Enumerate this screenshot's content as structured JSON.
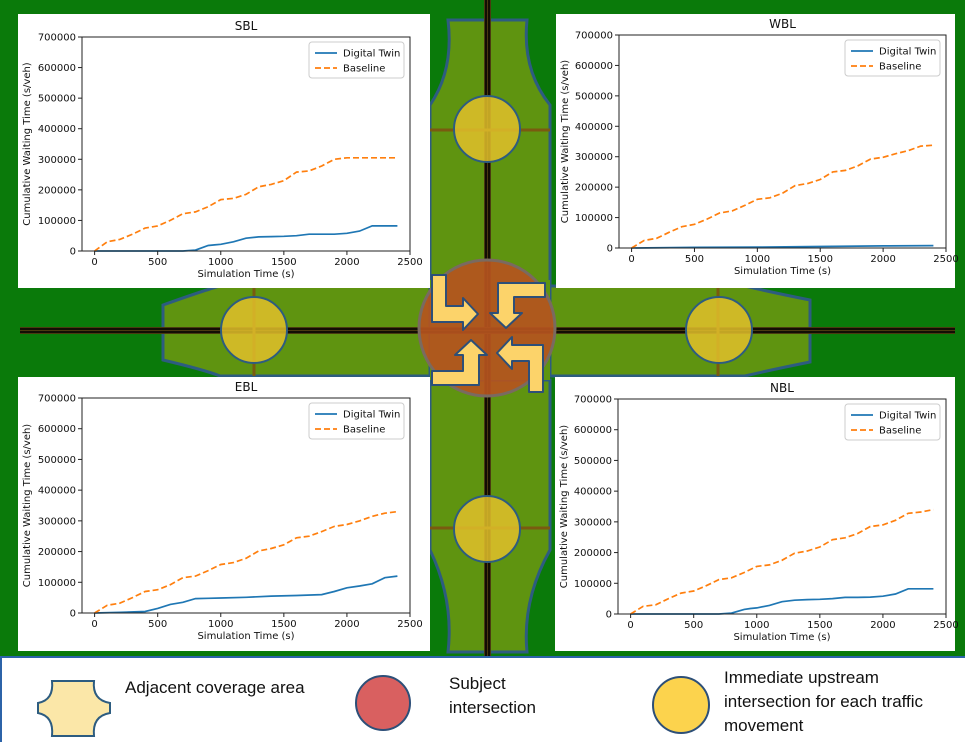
{
  "colors": {
    "grass": "#0a7a0a",
    "coverage_area": "#5f9410",
    "coverage_legend_fill": "#fbe7a8",
    "subject_intersection": "#d96060",
    "upstream_intersection": "#fcd34d",
    "digital_twin_line": "#1f77b4",
    "baseline_line": "#ff7f0e",
    "arrow_fill": "#fcd36a"
  },
  "charts": [
    {
      "title": "SBL",
      "legend": [
        "Digital Twin",
        "Baseline"
      ]
    },
    {
      "title": "WBL",
      "legend": [
        "Digital Twin",
        "Baseline"
      ]
    },
    {
      "title": "EBL",
      "legend": [
        "Digital Twin",
        "Baseline"
      ]
    },
    {
      "title": "NBL",
      "legend": [
        "Digital Twin",
        "Baseline"
      ]
    }
  ],
  "legend": {
    "coverage": "Adjacent coverage area",
    "subject": "Subject intersection",
    "upstream": "Immediate upstream intersection for each traffic movement"
  },
  "chart_data": [
    {
      "type": "line",
      "title": "SBL",
      "xlabel": "Simulation Time (s)",
      "ylabel": "Cumulative Waiting Time (s/veh)",
      "xlim": [
        -100,
        2500
      ],
      "ylim": [
        0,
        700000
      ],
      "xticks": [
        0,
        500,
        1000,
        1500,
        2000,
        2500
      ],
      "yticks": [
        0,
        100000,
        200000,
        300000,
        400000,
        500000,
        600000,
        700000
      ],
      "legend_position": "top-right",
      "series": [
        {
          "name": "Digital Twin",
          "x": [
            0,
            200,
            400,
            600,
            700,
            800,
            900,
            950,
            1000,
            1100,
            1200,
            1300,
            1400,
            1500,
            1600,
            1700,
            1800,
            1900,
            2000,
            2100,
            2200,
            2300,
            2400
          ],
          "y": [
            0,
            0,
            0,
            0,
            0,
            3000,
            18000,
            20000,
            22000,
            30000,
            42000,
            46000,
            47000,
            48000,
            50000,
            55000,
            55000,
            55000,
            58000,
            65000,
            82000,
            82000,
            82000
          ]
        },
        {
          "name": "Baseline",
          "x": [
            0,
            100,
            200,
            300,
            400,
            500,
            600,
            700,
            800,
            900,
            1000,
            1100,
            1200,
            1300,
            1400,
            1500,
            1600,
            1700,
            1800,
            1900,
            2000,
            2100,
            2200,
            2300,
            2400
          ],
          "y": [
            0,
            30000,
            38000,
            55000,
            75000,
            82000,
            100000,
            122000,
            128000,
            145000,
            168000,
            172000,
            185000,
            210000,
            218000,
            230000,
            258000,
            262000,
            278000,
            300000,
            305000,
            305000,
            305000,
            305000,
            305000
          ]
        }
      ]
    },
    {
      "type": "line",
      "title": "WBL",
      "xlabel": "Simulation Time (s)",
      "ylabel": "Cumulative Waiting Time (s/veh)",
      "xlim": [
        -100,
        2500
      ],
      "ylim": [
        0,
        700000
      ],
      "xticks": [
        0,
        500,
        1000,
        1500,
        2000,
        2500
      ],
      "yticks": [
        0,
        100000,
        200000,
        300000,
        400000,
        500000,
        600000,
        700000
      ],
      "legend_position": "top-right",
      "series": [
        {
          "name": "Digital Twin",
          "x": [
            0,
            500,
            1000,
            1500,
            2000,
            2400
          ],
          "y": [
            0,
            2000,
            3000,
            5000,
            7000,
            8000
          ]
        },
        {
          "name": "Baseline",
          "x": [
            0,
            100,
            200,
            300,
            400,
            500,
            600,
            700,
            800,
            900,
            1000,
            1100,
            1200,
            1300,
            1400,
            1500,
            1600,
            1700,
            1800,
            1900,
            2000,
            2100,
            2200,
            2300,
            2400
          ],
          "y": [
            0,
            25000,
            32000,
            52000,
            70000,
            78000,
            95000,
            115000,
            122000,
            140000,
            160000,
            165000,
            180000,
            205000,
            212000,
            225000,
            250000,
            255000,
            270000,
            292000,
            298000,
            310000,
            320000,
            335000,
            338000
          ]
        }
      ]
    },
    {
      "type": "line",
      "title": "EBL",
      "xlabel": "Simulation Time (s)",
      "ylabel": "Cumulative Waiting Time (s/veh)",
      "xlim": [
        -100,
        2500
      ],
      "ylim": [
        0,
        700000
      ],
      "xticks": [
        0,
        500,
        1000,
        1500,
        2000,
        2500
      ],
      "yticks": [
        0,
        100000,
        200000,
        300000,
        400000,
        500000,
        600000,
        700000
      ],
      "legend_position": "top-right",
      "series": [
        {
          "name": "Digital Twin",
          "x": [
            0,
            200,
            400,
            500,
            600,
            700,
            800,
            900,
            1000,
            1200,
            1400,
            1600,
            1800,
            1900,
            2000,
            2100,
            2200,
            2300,
            2400
          ],
          "y": [
            0,
            2000,
            5000,
            15000,
            28000,
            35000,
            47000,
            48000,
            49000,
            51000,
            55000,
            57000,
            60000,
            70000,
            82000,
            88000,
            95000,
            115000,
            120000
          ]
        },
        {
          "name": "Baseline",
          "x": [
            0,
            100,
            200,
            300,
            400,
            500,
            600,
            700,
            800,
            900,
            1000,
            1100,
            1200,
            1300,
            1400,
            1500,
            1600,
            1700,
            1800,
            1900,
            2000,
            2100,
            2200,
            2300,
            2400
          ],
          "y": [
            0,
            25000,
            32000,
            50000,
            70000,
            76000,
            92000,
            115000,
            120000,
            138000,
            158000,
            164000,
            178000,
            202000,
            210000,
            222000,
            245000,
            250000,
            265000,
            282000,
            288000,
            300000,
            315000,
            325000,
            330000
          ]
        }
      ]
    },
    {
      "type": "line",
      "title": "NBL",
      "xlabel": "Simulation Time (s)",
      "ylabel": "Cumulative Waiting Time (s/veh)",
      "xlim": [
        -100,
        2500
      ],
      "ylim": [
        0,
        700000
      ],
      "xticks": [
        0,
        500,
        1000,
        1500,
        2000,
        2500
      ],
      "yticks": [
        0,
        100000,
        200000,
        300000,
        400000,
        500000,
        600000,
        700000
      ],
      "legend_position": "top-right",
      "series": [
        {
          "name": "Digital Twin",
          "x": [
            0,
            200,
            400,
            600,
            700,
            800,
            900,
            950,
            1000,
            1100,
            1200,
            1300,
            1400,
            1500,
            1600,
            1700,
            1800,
            1900,
            2000,
            2100,
            2200,
            2300,
            2400
          ],
          "y": [
            0,
            0,
            0,
            0,
            0,
            3000,
            15000,
            18000,
            20000,
            28000,
            40000,
            45000,
            47000,
            48000,
            50000,
            54000,
            54000,
            55000,
            58000,
            65000,
            82000,
            82000,
            82000
          ]
        },
        {
          "name": "Baseline",
          "x": [
            0,
            100,
            200,
            300,
            400,
            500,
            600,
            700,
            800,
            900,
            1000,
            1100,
            1200,
            1300,
            1400,
            1500,
            1600,
            1700,
            1800,
            1900,
            2000,
            2100,
            2200,
            2300,
            2400
          ],
          "y": [
            0,
            25000,
            30000,
            50000,
            68000,
            75000,
            92000,
            112000,
            118000,
            135000,
            155000,
            160000,
            175000,
            198000,
            205000,
            218000,
            242000,
            248000,
            262000,
            285000,
            290000,
            305000,
            328000,
            332000,
            340000
          ]
        }
      ]
    }
  ]
}
